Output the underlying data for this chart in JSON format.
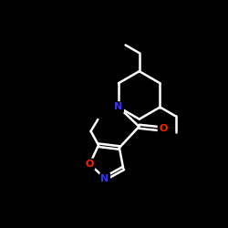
{
  "background_color": "#000000",
  "bond_color": "#ffffff",
  "N_color": "#3333ff",
  "O_color": "#ff2200",
  "font_size_atom": 8,
  "line_width": 1.8,
  "figsize": [
    2.5,
    2.5
  ],
  "dpi": 100,
  "xlim": [
    0,
    10
  ],
  "ylim": [
    0,
    10
  ]
}
